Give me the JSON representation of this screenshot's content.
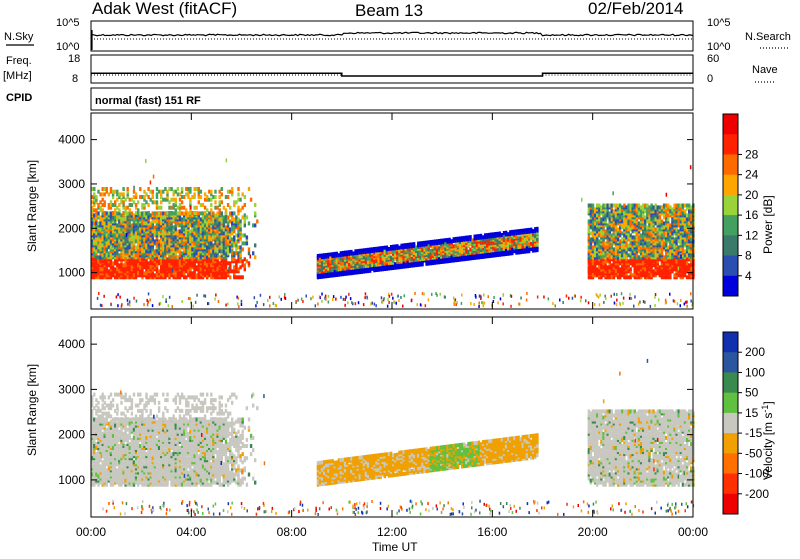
{
  "header": {
    "station": "Adak West (fitACF)",
    "beam": "Beam 13",
    "date": "02/Feb/2014"
  },
  "strip1": {
    "left_label": "N.Sky",
    "left_ticks": [
      "10^5",
      "10^0"
    ],
    "right_label": "N.Search",
    "right_ticks": [
      "10^5",
      "10^0"
    ]
  },
  "strip2": {
    "left_label_top": "Freq.",
    "left_label_unit": "[MHz]",
    "left_ticks": [
      "18",
      "8"
    ],
    "right_label": "Nave",
    "right_ticks": [
      "60",
      "0"
    ]
  },
  "cpid": {
    "label": "CPID",
    "value": "normal (fast) 151 RF"
  },
  "power_panel": {
    "ylabel": "Slant Range [km]",
    "yticks": [
      "1000",
      "2000",
      "3000",
      "4000"
    ],
    "colorbar_label": "Power [dB]",
    "colorbar_ticks": [
      "4",
      "8",
      "12",
      "16",
      "20",
      "24",
      "28"
    ],
    "colors": [
      "#0000dd",
      "#2b4fb0",
      "#3a7a6a",
      "#44a060",
      "#9ad23a",
      "#ffa500",
      "#ff6a00",
      "#ff2200",
      "#ee0000"
    ]
  },
  "velocity_panel": {
    "ylabel": "Slant Range [km]",
    "yticks": [
      "1000",
      "2000",
      "3000",
      "4000"
    ],
    "colorbar_label": "Velocity [m s^-1]",
    "colorbar_ticks": [
      "200",
      "100",
      "50",
      "15",
      "-15",
      "-50",
      "-100",
      "-200"
    ],
    "colors": [
      "#1030b0",
      "#2c55a0",
      "#3a8a50",
      "#60c040",
      "#c8c8c0",
      "#f0a000",
      "#ff7000",
      "#ff3000",
      "#ee0000"
    ]
  },
  "xaxis": {
    "label": "Time UT",
    "ticks": [
      "00:00",
      "04:00",
      "08:00",
      "12:00",
      "16:00",
      "20:00",
      "00:00"
    ]
  },
  "chart_data": [
    {
      "type": "line",
      "title": "N.Sky / N.Search",
      "y_scale": "log",
      "ylim": [
        1,
        100000
      ]
    },
    {
      "type": "line",
      "title": "Freq. / Nave",
      "series": [
        {
          "name": "Freq. [MHz]",
          "x": [
            "00:00",
            "10:00",
            "10:00",
            "18:00",
            "18:00",
            "24:00"
          ],
          "values": [
            11.5,
            11.5,
            10.5,
            10.5,
            11.5,
            11.5
          ]
        }
      ],
      "ylim": [
        8,
        18
      ]
    },
    {
      "type": "heatmap",
      "title": "Power [dB]",
      "xlabel": "Time UT",
      "ylabel": "Slant Range [km]",
      "xlim": [
        0,
        24
      ],
      "ylim": [
        180,
        4600
      ],
      "clim": [
        0,
        30
      ]
    },
    {
      "type": "heatmap",
      "title": "Velocity [m s^-1]",
      "xlabel": "Time UT",
      "ylabel": "Slant Range [km]",
      "xlim": [
        0,
        24
      ],
      "ylim": [
        180,
        4600
      ],
      "clim": [
        -200,
        200
      ]
    }
  ]
}
